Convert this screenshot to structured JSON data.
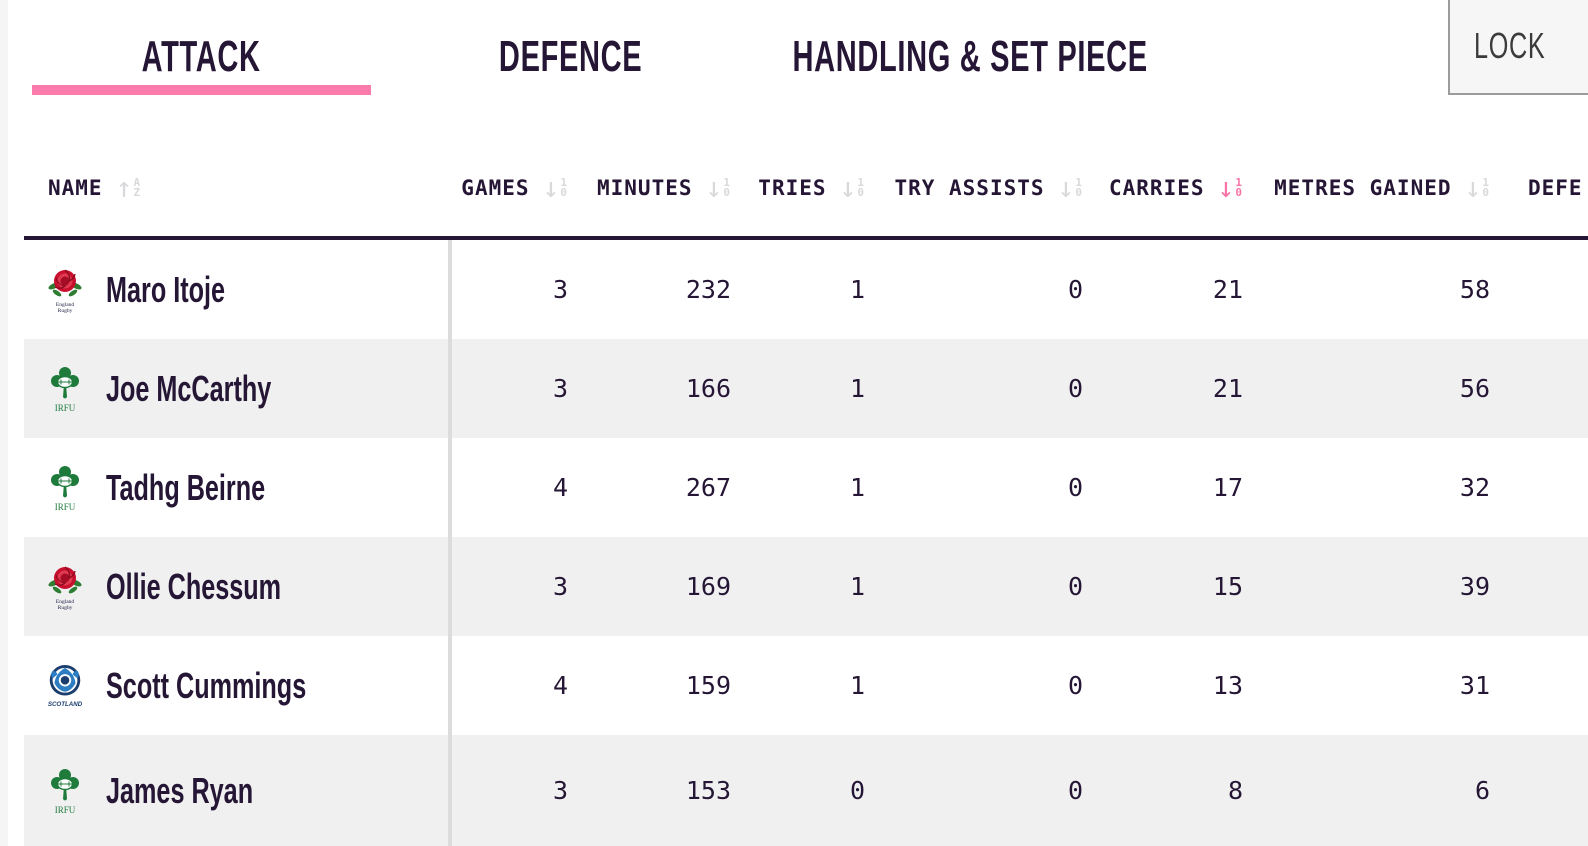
{
  "colors": {
    "accent_pink": "#fb7bad",
    "ink": "#241634",
    "row_alt": "#f0f0f1",
    "sort_inactive": "#d9d9dc",
    "sort_active": "#f973a6",
    "page_bg": "#f5f5f6"
  },
  "tabs": [
    {
      "label": "ATTACK",
      "active": true
    },
    {
      "label": "DEFENCE",
      "active": false
    },
    {
      "label": "HANDLING & SET PIECE",
      "active": false
    }
  ],
  "lock": {
    "label": "LOCK"
  },
  "table": {
    "columns": [
      {
        "key": "name",
        "label": "NAME",
        "sort": "alpha-up-inactive"
      },
      {
        "key": "games",
        "label": "GAMES",
        "sort": "num-down-inactive"
      },
      {
        "key": "minutes",
        "label": "MINUTES",
        "sort": "num-down-inactive"
      },
      {
        "key": "tries",
        "label": "TRIES",
        "sort": "num-down-inactive"
      },
      {
        "key": "try-assists",
        "label": "TRY ASSISTS",
        "sort": "num-down-inactive"
      },
      {
        "key": "carries",
        "label": "CARRIES",
        "sort": "num-down-active"
      },
      {
        "key": "metres-gained",
        "label": "METRES GAINED",
        "sort": "num-down-inactive"
      },
      {
        "key": "defe",
        "label": "DEFE",
        "sort": "none"
      }
    ],
    "sort_glyphs": {
      "num_top": "1",
      "num_bottom": "0",
      "alpha_top": "A",
      "alpha_bottom": "Z",
      "down_arrow": "↓",
      "up_arrow": "↑"
    },
    "rows": [
      {
        "team": "england",
        "team_caption": "England Rugby",
        "player": "Maro Itoje",
        "values": [
          "3",
          "232",
          "1",
          "0",
          "21",
          "58"
        ]
      },
      {
        "team": "ireland",
        "team_caption": "IRFU",
        "player": "Joe McCarthy",
        "values": [
          "3",
          "166",
          "1",
          "0",
          "21",
          "56"
        ]
      },
      {
        "team": "ireland",
        "team_caption": "IRFU",
        "player": "Tadhg Beirne",
        "values": [
          "4",
          "267",
          "1",
          "0",
          "17",
          "32"
        ]
      },
      {
        "team": "england",
        "team_caption": "England Rugby",
        "player": "Ollie Chessum",
        "values": [
          "3",
          "169",
          "1",
          "0",
          "15",
          "39"
        ]
      },
      {
        "team": "scotland",
        "team_caption": "Scotland",
        "player": "Scott Cummings",
        "values": [
          "4",
          "159",
          "1",
          "0",
          "13",
          "31"
        ]
      },
      {
        "team": "ireland",
        "team_caption": "IRFU",
        "player": "James Ryan",
        "values": [
          "3",
          "153",
          "0",
          "0",
          "8",
          "6"
        ]
      }
    ]
  }
}
